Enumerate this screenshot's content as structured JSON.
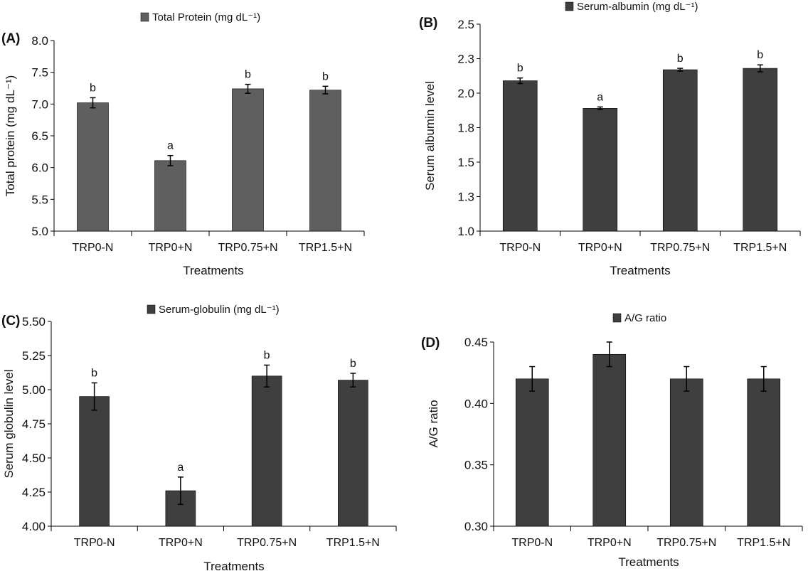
{
  "colors": {
    "panel_a_bar": "#5f5f5f",
    "panel_bar": "#3f3f3f",
    "axis": "#000000",
    "text": "#111111"
  },
  "chart_data": [
    {
      "panel": "(A)",
      "type": "bar",
      "legend": "Total Protein (mg dL⁻¹)",
      "legend_placement": "top-center",
      "xlabel": "Treatments",
      "ylabel": "Total protein (mg dL⁻¹)",
      "categories": [
        "TRP0-N",
        "TRP0+N",
        "TRP0.75+N",
        "TRP1.5+N"
      ],
      "values": [
        7.02,
        6.11,
        7.24,
        7.22
      ],
      "errors": [
        0.08,
        0.08,
        0.07,
        0.06
      ],
      "letters": [
        "b",
        "a",
        "b",
        "b"
      ],
      "ylim": [
        5.0,
        8.0
      ],
      "yticks": [
        "5.0",
        "5.5",
        "6.0",
        "6.5",
        "7.0",
        "7.5",
        "8.0"
      ],
      "grid": false
    },
    {
      "panel": "(B)",
      "type": "bar",
      "legend": "Serum-albumin (mg dL⁻¹)",
      "legend_placement": "top-center",
      "xlabel": "Treatments",
      "ylabel": "Serum albumin level",
      "categories": [
        "TRP0-N",
        "TRP0+N",
        "TRP0.75+N",
        "TRP1.5+N"
      ],
      "values": [
        2.09,
        1.89,
        2.17,
        2.18
      ],
      "errors": [
        0.02,
        0.01,
        0.01,
        0.025
      ],
      "letters": [
        "b",
        "a",
        "b",
        "b"
      ],
      "ylim": [
        1.0,
        2.5
      ],
      "yticks": [
        "1.0",
        "1.3",
        "1.5",
        "1.8",
        "2.0",
        "2.3",
        "2.5"
      ],
      "grid": false
    },
    {
      "panel": "(C)",
      "type": "bar",
      "legend": "Serum-globulin (mg dL⁻¹)",
      "legend_placement": "top-center",
      "xlabel": "Treatments",
      "ylabel": "Serum globulin level",
      "categories": [
        "TRP0-N",
        "TRP0+N",
        "TRP0.75+N",
        "TRP1.5+N"
      ],
      "values": [
        4.95,
        4.26,
        5.1,
        5.07
      ],
      "errors": [
        0.1,
        0.1,
        0.08,
        0.05
      ],
      "letters": [
        "b",
        "a",
        "b",
        "b"
      ],
      "ylim": [
        4.0,
        5.5
      ],
      "yticks": [
        "4.00",
        "4.25",
        "4.50",
        "4.75",
        "5.00",
        "5.25",
        "5.50"
      ],
      "grid": false
    },
    {
      "panel": "(D)",
      "type": "bar",
      "legend": "A/G ratio",
      "legend_placement": "top-center",
      "xlabel": "Treatments",
      "ylabel": "A/G ratio",
      "categories": [
        "TRP0-N",
        "TRP0+N",
        "TRP0.75+N",
        "TRP1.5+N"
      ],
      "values": [
        0.42,
        0.44,
        0.42,
        0.42
      ],
      "errors": [
        0.01,
        0.01,
        0.01,
        0.01
      ],
      "letters": [],
      "ylim": [
        0.3,
        0.45
      ],
      "yticks": [
        "0.30",
        "0.35",
        "0.40",
        "0.45"
      ],
      "grid": false
    }
  ]
}
